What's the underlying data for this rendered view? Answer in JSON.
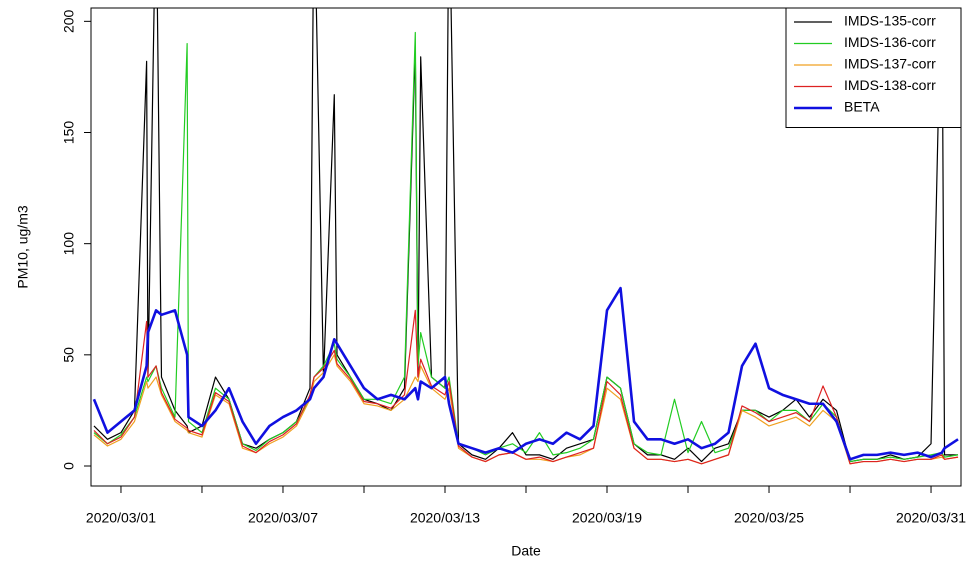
{
  "chart_data": {
    "type": "line",
    "y_label": "PM10, ug/m3",
    "x_label": "Date",
    "xlim": [
      -0.11,
      32.11
    ],
    "xticks": [
      {
        "value": 1,
        "label": "2020/03/01"
      },
      {
        "value": 7,
        "label": "2020/03/07"
      },
      {
        "value": 13,
        "label": "2020/03/13"
      },
      {
        "value": 19,
        "label": "2020/03/19"
      },
      {
        "value": 25,
        "label": "2020/03/25"
      },
      {
        "value": 31,
        "label": "2020/03/31"
      }
    ],
    "xminorticks": [
      4,
      10,
      16,
      22,
      28
    ],
    "ylim": [
      -9,
      206
    ],
    "yticks": [
      0,
      50,
      100,
      150,
      200
    ],
    "legend": "top-right",
    "x": [
      0,
      0.5,
      1,
      1.5,
      1.95,
      2,
      2.3,
      2.5,
      3,
      3.45,
      3.5,
      4,
      4.5,
      5,
      5.5,
      6,
      6.5,
      7,
      7.5,
      8,
      8.15,
      8.5,
      8.9,
      9,
      9.5,
      10,
      10.5,
      11,
      11.5,
      11.9,
      12,
      12.1,
      12.5,
      13,
      13.15,
      13.5,
      14,
      14.5,
      15,
      15.5,
      16,
      16.5,
      17,
      17.5,
      18,
      18.5,
      19,
      19.5,
      20,
      20.5,
      21,
      21.5,
      22,
      22.5,
      23,
      23.5,
      24,
      24.5,
      25,
      25.5,
      26,
      26.5,
      27,
      27.5,
      28,
      28.5,
      29,
      29.5,
      30,
      30.5,
      31,
      31.4,
      31.5,
      32
    ],
    "series": [
      {
        "name": "IMDS-135-corr",
        "color": "#000000",
        "line_width": 1.2,
        "values": [
          18,
          12,
          15,
          25,
          182,
          40,
          260,
          40,
          25,
          18,
          15,
          18,
          40,
          30,
          10,
          8,
          12,
          15,
          20,
          35,
          260,
          40,
          167,
          50,
          40,
          30,
          28,
          25,
          35,
          188,
          40,
          184,
          40,
          35,
          260,
          10,
          5,
          3,
          8,
          15,
          5,
          5,
          3,
          8,
          10,
          12,
          40,
          35,
          10,
          5,
          5,
          3,
          8,
          2,
          8,
          10,
          25,
          25,
          22,
          25,
          30,
          22,
          30,
          25,
          2,
          3,
          3,
          5,
          3,
          4,
          10,
          230,
          5,
          5
        ]
      },
      {
        "name": "IMDS-136-corr",
        "color": "#22cc22",
        "line_width": 1.2,
        "values": [
          15,
          10,
          14,
          22,
          40,
          38,
          45,
          35,
          22,
          190,
          20,
          15,
          35,
          30,
          10,
          7,
          12,
          15,
          20,
          30,
          40,
          45,
          55,
          48,
          40,
          30,
          30,
          28,
          40,
          195,
          45,
          60,
          40,
          35,
          40,
          10,
          8,
          5,
          8,
          10,
          6,
          15,
          5,
          6,
          8,
          12,
          40,
          35,
          10,
          6,
          5,
          30,
          6,
          20,
          6,
          8,
          25,
          25,
          20,
          25,
          25,
          20,
          28,
          22,
          2,
          3,
          3,
          4,
          3,
          4,
          5,
          6,
          4,
          5
        ]
      },
      {
        "name": "IMDS-137-corr",
        "color": "#f0a020",
        "line_width": 1.2,
        "values": [
          14,
          9,
          12,
          20,
          38,
          35,
          40,
          32,
          20,
          16,
          15,
          13,
          32,
          28,
          8,
          6,
          10,
          13,
          18,
          30,
          38,
          42,
          50,
          45,
          38,
          28,
          27,
          25,
          30,
          40,
          38,
          45,
          35,
          30,
          35,
          8,
          4,
          2,
          5,
          6,
          3,
          3,
          2,
          4,
          5,
          8,
          35,
          30,
          8,
          3,
          3,
          2,
          3,
          1,
          3,
          5,
          25,
          22,
          18,
          20,
          22,
          18,
          25,
          20,
          1,
          2,
          2,
          3,
          2,
          3,
          3,
          4,
          3,
          4
        ]
      },
      {
        "name": "IMDS-138-corr",
        "color": "#dd2222",
        "line_width": 1.2,
        "values": [
          16,
          10,
          13,
          22,
          65,
          40,
          45,
          33,
          21,
          17,
          16,
          14,
          33,
          29,
          9,
          6,
          11,
          14,
          19,
          32,
          40,
          44,
          52,
          46,
          39,
          29,
          28,
          26,
          32,
          70,
          40,
          48,
          36,
          32,
          38,
          9,
          4,
          2,
          5,
          6,
          3,
          4,
          2,
          4,
          6,
          8,
          38,
          32,
          8,
          3,
          3,
          2,
          3,
          1,
          3,
          5,
          27,
          24,
          20,
          22,
          24,
          20,
          36,
          22,
          1,
          2,
          2,
          3,
          2,
          3,
          3,
          5,
          3,
          4
        ]
      },
      {
        "name": "BETA",
        "color": "#1010e0",
        "line_width": 2.6,
        "values": [
          30,
          15,
          20,
          25,
          45,
          60,
          70,
          68,
          70,
          50,
          22,
          18,
          25,
          35,
          20,
          10,
          18,
          22,
          25,
          30,
          35,
          40,
          57,
          55,
          45,
          35,
          30,
          32,
          30,
          35,
          30,
          38,
          35,
          40,
          28,
          10,
          8,
          6,
          8,
          6,
          10,
          12,
          10,
          15,
          12,
          18,
          70,
          80,
          20,
          12,
          12,
          10,
          12,
          8,
          10,
          15,
          45,
          55,
          35,
          32,
          30,
          28,
          28,
          20,
          3,
          5,
          5,
          6,
          5,
          6,
          4,
          6,
          8,
          12
        ]
      }
    ]
  }
}
